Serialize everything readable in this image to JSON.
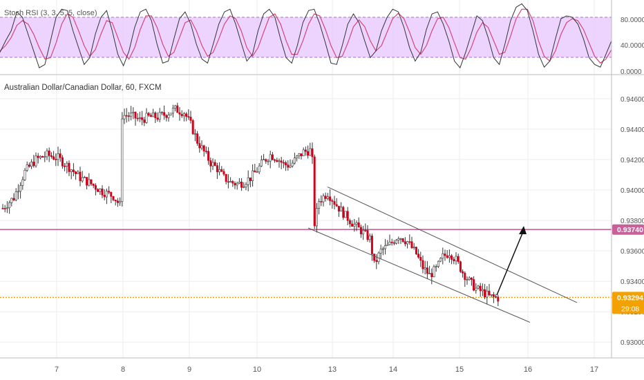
{
  "colors": {
    "bull": "#ffffff",
    "bear": "#d0021b",
    "wick": "#333333",
    "stoch_k": "#333333",
    "stoch_d": "#d64579",
    "stoch_band": "#e6c6ff",
    "resistance": "#c8609a",
    "price_line": "#f2a100",
    "channel": "#555555",
    "grid": "#eeeeee",
    "axis_text": "#555555"
  },
  "stoch_panel": {
    "label": "Stoch RSI (3, 3, 5, 5, close)",
    "y_ticks": [
      "80.0000",
      "40.0000",
      "0.0000"
    ],
    "k": [
      28,
      45,
      60,
      88,
      80,
      55,
      30,
      5,
      10,
      45,
      80,
      92,
      90,
      60,
      35,
      10,
      20,
      55,
      80,
      90,
      60,
      25,
      8,
      30,
      65,
      88,
      92,
      75,
      40,
      12,
      15,
      48,
      78,
      88,
      70,
      40,
      18,
      12,
      40,
      70,
      88,
      92,
      70,
      42,
      15,
      25,
      60,
      85,
      92,
      80,
      48,
      20,
      12,
      38,
      72,
      90,
      92,
      70,
      42,
      12,
      10,
      38,
      70,
      85,
      72,
      45,
      20,
      30,
      60,
      80,
      92,
      88,
      65,
      35,
      15,
      28,
      62,
      85,
      88,
      70,
      45,
      15,
      5,
      28,
      55,
      82,
      75,
      50,
      20,
      10,
      40,
      75,
      95,
      100,
      90,
      60,
      25,
      6,
      15,
      48,
      78,
      82,
      80,
      70,
      48,
      20,
      10,
      6,
      25,
      45
    ],
    "d": [
      30,
      38,
      50,
      68,
      75,
      70,
      55,
      35,
      18,
      20,
      42,
      70,
      85,
      80,
      60,
      38,
      22,
      32,
      55,
      75,
      72,
      50,
      28,
      18,
      35,
      62,
      82,
      82,
      65,
      40,
      22,
      28,
      50,
      72,
      76,
      60,
      38,
      22,
      28,
      48,
      70,
      82,
      78,
      60,
      35,
      22,
      35,
      58,
      80,
      85,
      70,
      45,
      25,
      25,
      45,
      70,
      85,
      82,
      62,
      38,
      20,
      22,
      42,
      66,
      76,
      66,
      45,
      30,
      38,
      58,
      78,
      86,
      78,
      58,
      35,
      25,
      38,
      60,
      78,
      80,
      65,
      42,
      20,
      18,
      35,
      58,
      72,
      65,
      45,
      25,
      28,
      52,
      78,
      92,
      92,
      75,
      45,
      22,
      15,
      30,
      55,
      72,
      78,
      75,
      62,
      42,
      22,
      12,
      18,
      32
    ]
  },
  "main_panel": {
    "label": "Australian Dollar/Canadian Dollar, 60, FXCM",
    "y_ticks": [
      "0.94600",
      "0.94400",
      "0.94200",
      "0.94000",
      "0.93800",
      "0.93600",
      "0.93400",
      "0.93200",
      "0.93000"
    ],
    "y_tick_values": [
      0.946,
      0.944,
      0.942,
      0.94,
      0.938,
      0.936,
      0.934,
      0.932,
      0.93
    ],
    "resistance_label": "0.93740",
    "price_label": "0.93294",
    "countdown_label": "29:08"
  },
  "x_axis": {
    "ticks": [
      "7",
      "8",
      "9",
      "10",
      "13",
      "14",
      "15",
      "16",
      "17"
    ]
  },
  "chart_data": {
    "type": "candlestick",
    "title": "Australian Dollar/Canadian Dollar, 60, FXCM",
    "timeframe": "60",
    "ylim": [
      0.9291,
      0.9474
    ],
    "x_ticks": [
      "7",
      "8",
      "9",
      "10",
      "13",
      "14",
      "15",
      "16",
      "17"
    ],
    "resistance_level": 0.9374,
    "current_price": 0.93294,
    "price_path": [
      [
        0,
        0.9388
      ],
      [
        5,
        0.9395
      ],
      [
        10,
        0.9412
      ],
      [
        15,
        0.942
      ],
      [
        20,
        0.9423
      ],
      [
        25,
        0.9421
      ],
      [
        30,
        0.9415
      ],
      [
        35,
        0.9408
      ],
      [
        40,
        0.9404
      ],
      [
        45,
        0.9399
      ],
      [
        50,
        0.9396
      ],
      [
        53,
        0.939
      ],
      [
        54,
        0.9449
      ],
      [
        58,
        0.9449
      ],
      [
        62,
        0.9446
      ],
      [
        66,
        0.9448
      ],
      [
        70,
        0.9448
      ],
      [
        74,
        0.945
      ],
      [
        78,
        0.9453
      ],
      [
        82,
        0.9451
      ],
      [
        85,
        0.9443
      ],
      [
        88,
        0.9432
      ],
      [
        91,
        0.9425
      ],
      [
        94,
        0.9418
      ],
      [
        97,
        0.9414
      ],
      [
        100,
        0.9408
      ],
      [
        103,
        0.9405
      ],
      [
        106,
        0.9404
      ],
      [
        109,
        0.9405
      ],
      [
        112,
        0.9408
      ],
      [
        115,
        0.9413
      ],
      [
        118,
        0.9419
      ],
      [
        121,
        0.9423
      ],
      [
        124,
        0.9421
      ],
      [
        127,
        0.9417
      ],
      [
        130,
        0.9416
      ],
      [
        133,
        0.9421
      ],
      [
        136,
        0.9425
      ],
      [
        139,
        0.9426
      ],
      [
        140,
        0.9419
      ],
      [
        141,
        0.9378
      ],
      [
        143,
        0.9393
      ],
      [
        147,
        0.9398
      ],
      [
        151,
        0.939
      ],
      [
        155,
        0.9383
      ],
      [
        159,
        0.9377
      ],
      [
        163,
        0.9372
      ],
      [
        166,
        0.9368
      ],
      [
        168,
        0.9351
      ],
      [
        171,
        0.936
      ],
      [
        175,
        0.9364
      ],
      [
        179,
        0.937
      ],
      [
        183,
        0.9366
      ],
      [
        187,
        0.9358
      ],
      [
        190,
        0.9349
      ],
      [
        193,
        0.9344
      ],
      [
        196,
        0.9348
      ],
      [
        199,
        0.9356
      ],
      [
        202,
        0.9359
      ],
      [
        205,
        0.9354
      ],
      [
        208,
        0.9346
      ],
      [
        211,
        0.934
      ],
      [
        214,
        0.9335
      ],
      [
        217,
        0.9333
      ],
      [
        220,
        0.933
      ],
      [
        224,
        0.9329
      ]
    ],
    "channel_upper": [
      [
        0.9402,
        0.9326
      ]
    ],
    "channel_lower": [
      [
        0.9375,
        0.9313
      ]
    ],
    "annotation": "arrow pointing up toward resistance level"
  }
}
